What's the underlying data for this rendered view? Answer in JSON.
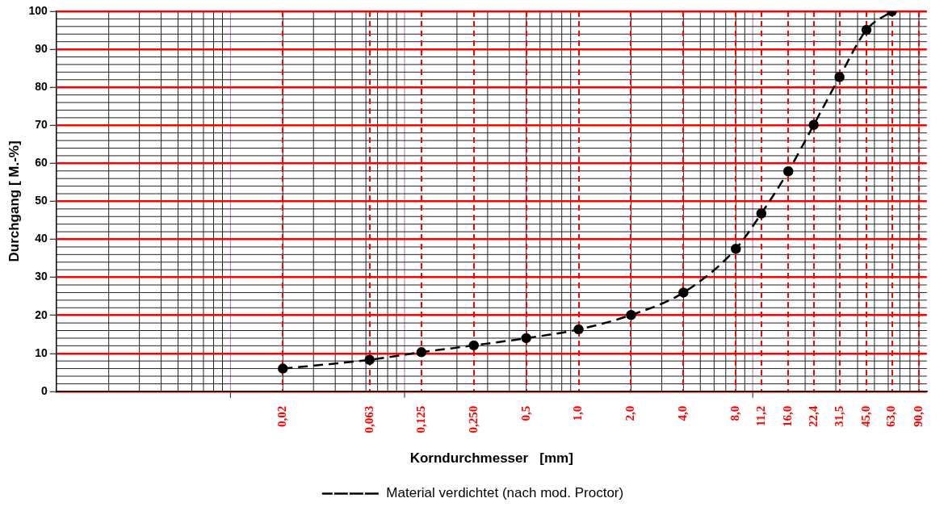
{
  "chart_data": {
    "type": "line",
    "xlabel": "Korndurchmesser   [mm]",
    "ylabel": "Durchgang [ M.-%]",
    "log": "x",
    "xlim": [
      0.001,
      100
    ],
    "ylim": [
      0,
      100
    ],
    "xticks": [
      {
        "value": 0.02,
        "label": "0,02"
      },
      {
        "value": 0.063,
        "label": "0,063"
      },
      {
        "value": 0.125,
        "label": "0,125"
      },
      {
        "value": 0.25,
        "label": "0,250"
      },
      {
        "value": 0.5,
        "label": "0,5"
      },
      {
        "value": 1,
        "label": "1,0"
      },
      {
        "value": 2,
        "label": "2,0"
      },
      {
        "value": 4,
        "label": "4,0"
      },
      {
        "value": 8,
        "label": "8,0"
      },
      {
        "value": 11.2,
        "label": "11,2"
      },
      {
        "value": 16,
        "label": "16,0"
      },
      {
        "value": 22.4,
        "label": "22,4"
      },
      {
        "value": 31.5,
        "label": "31,5"
      },
      {
        "value": 45,
        "label": "45,0"
      },
      {
        "value": 63,
        "label": "63,0"
      },
      {
        "value": 90,
        "label": "90,0"
      }
    ],
    "yticks": [
      0,
      10,
      20,
      30,
      40,
      50,
      60,
      70,
      80,
      90,
      100
    ],
    "ref_lines": [
      {
        "axis": "x",
        "value": 0.01,
        "color": "#b070b0"
      },
      {
        "axis": "x",
        "value": 0.1,
        "color": "#b070b0"
      },
      {
        "axis": "x",
        "value": 10,
        "color": "#b070b0"
      }
    ],
    "grid": true,
    "legend": "bottom",
    "marker": "circle",
    "line_style": "dashed",
    "series": [
      {
        "name": "Material verdichtet (nach mod. Proctor)",
        "color": "#000000",
        "x": [
          0.02,
          0.063,
          0.125,
          0.25,
          0.5,
          1,
          2,
          4,
          8,
          11.2,
          16,
          22.4,
          31.5,
          45,
          63
        ],
        "values": [
          6,
          8.3,
          10.3,
          12.1,
          14,
          16.3,
          20.1,
          26,
          37.5,
          46.8,
          57.9,
          70.1,
          82.7,
          95.1,
          100
        ]
      }
    ]
  }
}
